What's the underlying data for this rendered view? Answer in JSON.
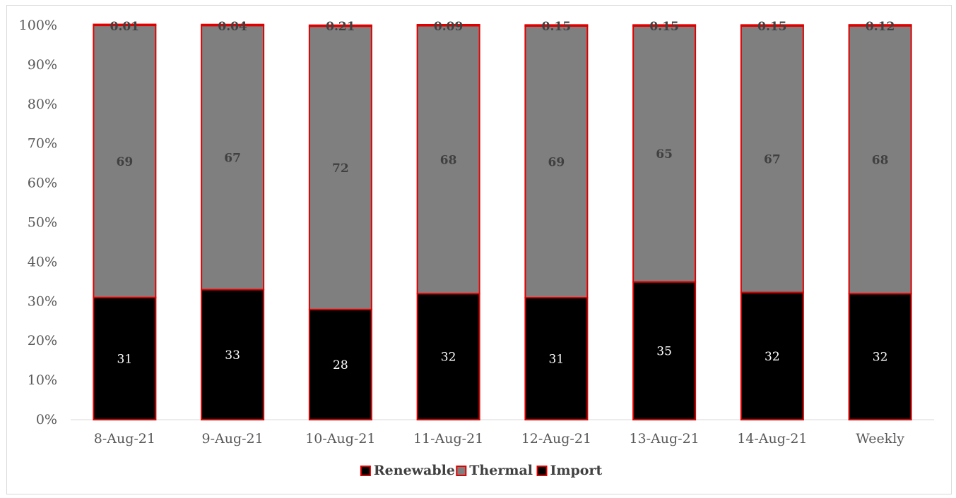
{
  "chart_data": {
    "type": "bar",
    "stacked": true,
    "percent_stacked": true,
    "categories": [
      "8-Aug-21",
      "9-Aug-21",
      "10-Aug-21",
      "11-Aug-21",
      "12-Aug-21",
      "13-Aug-21",
      "14-Aug-21",
      "Weekly"
    ],
    "series": [
      {
        "name": "Renewable",
        "values": [
          31,
          33,
          28,
          32,
          31,
          35,
          32,
          32
        ],
        "color": "#000000",
        "label_color": "#ffffff"
      },
      {
        "name": "Thermal",
        "values": [
          69,
          67,
          72,
          68,
          69,
          65,
          67,
          68
        ],
        "color": "#7f7f7f",
        "label_color": "#404040"
      },
      {
        "name": "Import",
        "values": [
          0.01,
          0.04,
          0.21,
          0.09,
          0.15,
          0.15,
          0.15,
          0.12
        ],
        "color": "#000000",
        "label_color": "#404040"
      }
    ],
    "border_color": "#e00000",
    "ylim": [
      0,
      100
    ],
    "yticks": [
      "0%",
      "10%",
      "20%",
      "30%",
      "40%",
      "50%",
      "60%",
      "70%",
      "80%",
      "90%",
      "100%"
    ],
    "title": "",
    "xlabel": "",
    "ylabel": "",
    "grid": false,
    "legend_position": "bottom"
  }
}
